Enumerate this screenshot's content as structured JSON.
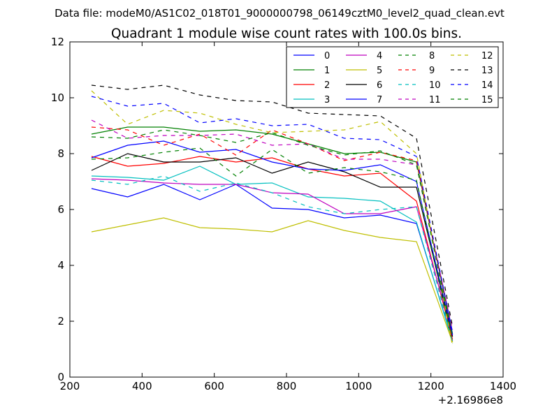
{
  "suptitle": "Data file: modeM0/AS1C02_018T01_9000000798_06149cztM0_level2_quad_clean.evt",
  "chart_data": {
    "type": "line",
    "title": "Quadrant 1 module wise count rates with 100.0s bins.",
    "xlabel": "",
    "ylabel": "",
    "x_offset_label": "+2.16986e8",
    "xlim": [
      200,
      1400
    ],
    "ylim": [
      0,
      12
    ],
    "xticks": [
      200,
      400,
      600,
      800,
      1000,
      1200,
      1400
    ],
    "yticks": [
      0,
      2,
      4,
      6,
      8,
      10,
      12
    ],
    "x": [
      260,
      360,
      460,
      560,
      660,
      760,
      860,
      960,
      1060,
      1160,
      1260
    ],
    "legend_position": "top-right",
    "legend_columns": 4,
    "series": [
      {
        "name": "0",
        "color": "#0000ff",
        "dash": "solid",
        "values": [
          6.75,
          6.45,
          6.9,
          6.35,
          6.9,
          6.05,
          6.0,
          5.7,
          5.8,
          5.5,
          1.3
        ]
      },
      {
        "name": "1",
        "color": "#008000",
        "dash": "solid",
        "values": [
          8.7,
          8.95,
          8.95,
          8.8,
          8.85,
          8.7,
          8.35,
          8.0,
          8.05,
          7.7,
          1.55
        ]
      },
      {
        "name": "2",
        "color": "#ff0000",
        "dash": "solid",
        "values": [
          7.9,
          7.55,
          7.65,
          7.9,
          7.7,
          7.85,
          7.45,
          7.2,
          7.3,
          6.3,
          1.35
        ]
      },
      {
        "name": "3",
        "color": "#00bfbf",
        "dash": "solid",
        "values": [
          7.2,
          7.15,
          7.05,
          7.55,
          6.9,
          6.95,
          6.45,
          6.4,
          6.3,
          5.55,
          1.25
        ]
      },
      {
        "name": "4",
        "color": "#bf00bf",
        "dash": "solid",
        "values": [
          7.1,
          7.05,
          6.95,
          6.9,
          6.9,
          6.6,
          6.55,
          5.85,
          5.85,
          6.1,
          1.5
        ]
      },
      {
        "name": "5",
        "color": "#bfbf00",
        "dash": "solid",
        "values": [
          5.2,
          5.45,
          5.7,
          5.35,
          5.3,
          5.2,
          5.6,
          5.25,
          5.0,
          4.85,
          1.25
        ]
      },
      {
        "name": "6",
        "color": "#000000",
        "dash": "solid",
        "values": [
          7.4,
          8.0,
          7.7,
          7.7,
          7.85,
          7.3,
          7.7,
          7.35,
          6.8,
          6.8,
          1.45
        ]
      },
      {
        "name": "7",
        "color": "#0000ff",
        "dash": "solid",
        "values": [
          7.85,
          8.3,
          8.45,
          8.05,
          8.15,
          7.7,
          7.45,
          7.4,
          7.6,
          7.0,
          1.5
        ]
      },
      {
        "name": "8",
        "color": "#008000",
        "dash": "dashed",
        "values": [
          7.8,
          7.85,
          8.05,
          8.2,
          7.2,
          8.15,
          7.3,
          7.5,
          7.35,
          7.05,
          1.2
        ]
      },
      {
        "name": "9",
        "color": "#ff0000",
        "dash": "dashed",
        "values": [
          8.95,
          8.85,
          8.3,
          8.7,
          7.95,
          8.85,
          8.35,
          7.75,
          8.05,
          7.75,
          1.6
        ]
      },
      {
        "name": "10",
        "color": "#00bfbf",
        "dash": "dashed",
        "values": [
          7.05,
          6.9,
          7.2,
          6.65,
          6.95,
          6.6,
          6.1,
          5.85,
          6.0,
          6.1,
          1.25
        ]
      },
      {
        "name": "11",
        "color": "#bf00bf",
        "dash": "dashed",
        "values": [
          9.2,
          8.55,
          8.65,
          8.65,
          8.7,
          8.3,
          8.35,
          7.8,
          7.8,
          7.6,
          1.7
        ]
      },
      {
        "name": "12",
        "color": "#bfbf00",
        "dash": "dashed",
        "values": [
          10.25,
          9.05,
          9.55,
          9.45,
          9.05,
          8.75,
          8.8,
          8.85,
          9.15,
          8.0,
          1.1
        ]
      },
      {
        "name": "13",
        "color": "#000000",
        "dash": "dashed",
        "values": [
          10.45,
          10.3,
          10.45,
          10.1,
          9.9,
          9.85,
          9.45,
          9.4,
          9.35,
          8.55,
          1.8
        ]
      },
      {
        "name": "14",
        "color": "#0000ff",
        "dash": "dashed",
        "values": [
          10.05,
          9.7,
          9.8,
          9.1,
          9.25,
          9.0,
          9.05,
          8.55,
          8.5,
          7.9,
          1.6
        ]
      },
      {
        "name": "15",
        "color": "#008000",
        "dash": "dashed",
        "values": [
          8.6,
          8.55,
          8.85,
          8.65,
          8.4,
          8.75,
          8.3,
          7.95,
          8.1,
          7.6,
          1.4
        ]
      }
    ]
  }
}
